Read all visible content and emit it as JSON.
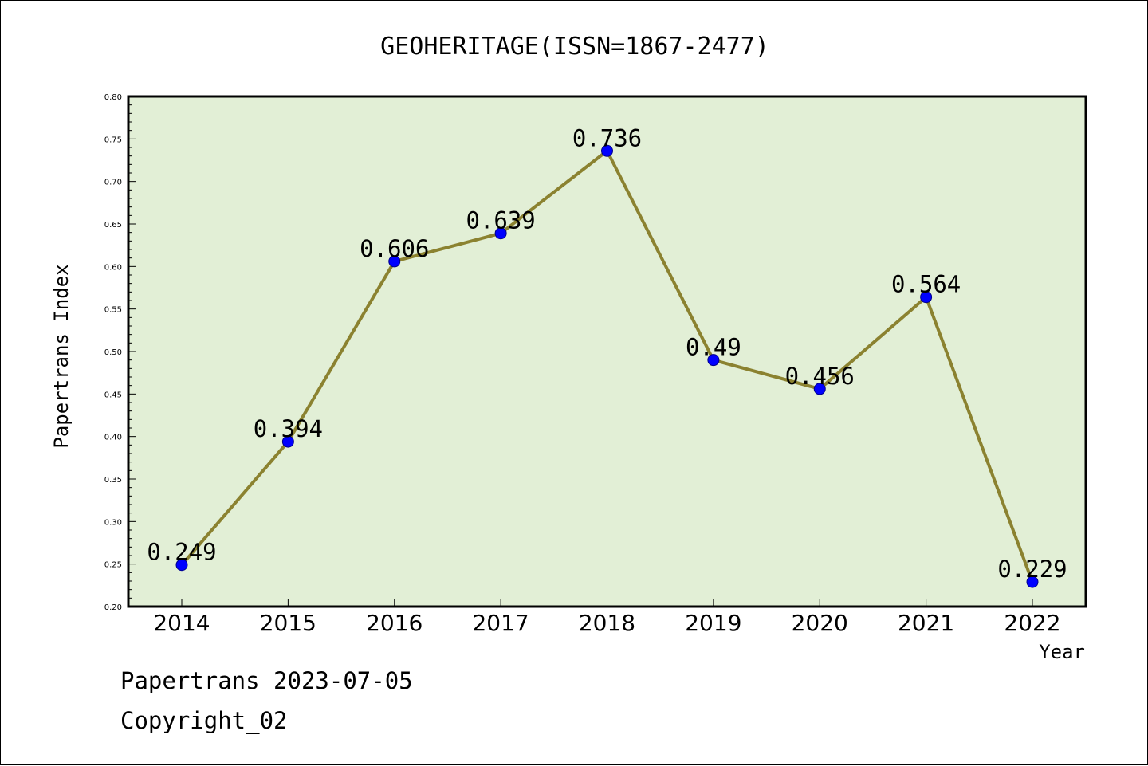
{
  "chart_data": {
    "type": "line",
    "title": "GEOHERITAGE(ISSN=1867-2477)",
    "xlabel": "Year",
    "ylabel": "Papertrans Index",
    "categories": [
      "2014",
      "2015",
      "2016",
      "2017",
      "2018",
      "2019",
      "2020",
      "2021",
      "2022"
    ],
    "series": [
      {
        "values": [
          0.249,
          0.394,
          0.606,
          0.639,
          0.736,
          0.49,
          0.456,
          0.564,
          0.229
        ]
      }
    ],
    "data_labels": [
      "0.249",
      "0.394",
      "0.606",
      "0.639",
      "0.736",
      "0.49",
      "0.456",
      "0.564",
      "0.229"
    ],
    "ylim": [
      0.2,
      0.8
    ],
    "yticks": [
      "0.20",
      "0.25",
      "0.30",
      "0.35",
      "0.40",
      "0.45",
      "0.50",
      "0.55",
      "0.60",
      "0.65",
      "0.70",
      "0.75",
      "0.80"
    ],
    "grid": false,
    "legend": "none",
    "colors": {
      "plot_background": "#e2efd6",
      "line": "#8b8230",
      "marker": "#0000ff"
    }
  },
  "footer": {
    "date_line": "Papertrans 2023-07-05",
    "copyright": "Copyright_02"
  }
}
